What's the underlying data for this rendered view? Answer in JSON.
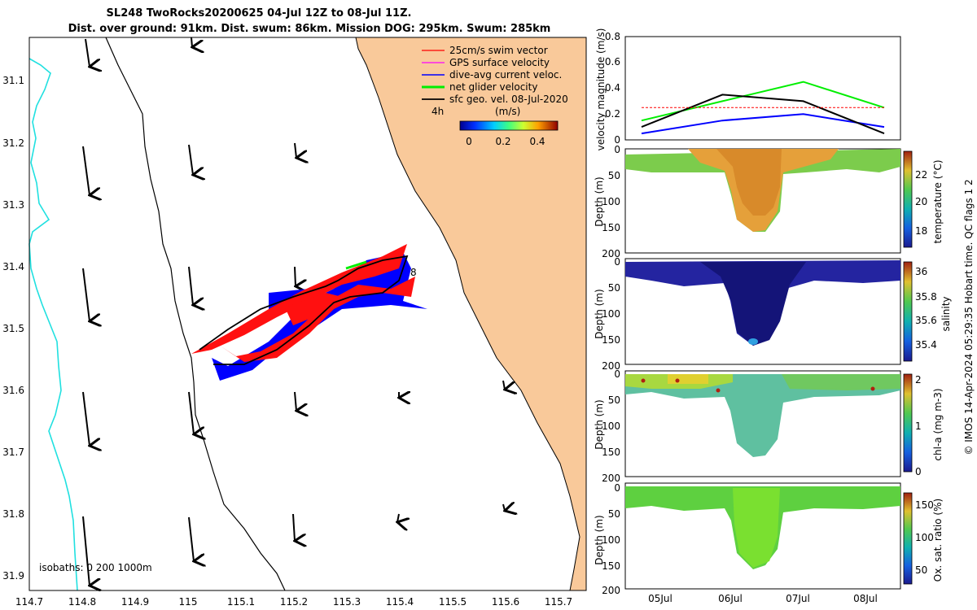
{
  "title": {
    "line1": "SL248 TwoRocks20200625 04-Jul 12Z to 08-Jul 11Z.",
    "line2": "Dist. over ground: 91km. Dist. swum: 86km. Mission DOG: 295km. Swum: 285km"
  },
  "map": {
    "x_ticks": [
      "114.7",
      "114.8",
      "114.9",
      "115",
      "115.1",
      "115.2",
      "115.3",
      "115.4",
      "115.5",
      "115.6",
      "115.7"
    ],
    "y_ticks": [
      "31.1",
      "31.2",
      "31.3",
      "31.4",
      "31.5",
      "31.6",
      "31.7",
      "31.8",
      "31.9"
    ],
    "legend": [
      {
        "label": "25cm/s swim vector",
        "color": "#ff0000"
      },
      {
        "label": "GPS surface velocity",
        "color": "#ff00ff"
      },
      {
        "label": "dive-avg current veloc.",
        "color": "#0000ff"
      },
      {
        "label": "net glider velocity",
        "color": "#00ee00"
      },
      {
        "label": "sfc geo. vel. 08-Jul-2020",
        "color": "#000000"
      }
    ],
    "scale_label": "4h",
    "colorbar_units": "(m/s)",
    "colorbar_ticks": [
      "0",
      "0.2",
      "0.4"
    ],
    "track_label": "8",
    "isobaths_label": "isobaths: 0   200  1000m",
    "land_color": "#f9c99a"
  },
  "velocity_panel": {
    "ylabel": "velocity magnitude (m/s)",
    "y_ticks": [
      "0",
      "0.2",
      "0.4",
      "0.6",
      "0.8"
    ]
  },
  "sections": [
    {
      "cb_label": "temperature (°C)",
      "cb_ticks": [
        "18",
        "20",
        "22"
      ],
      "ylabel": "Depth (m)",
      "y_ticks": [
        "0",
        "50",
        "100",
        "150",
        "200"
      ]
    },
    {
      "cb_label": "salinity",
      "cb_ticks": [
        "35.4",
        "35.6",
        "35.8",
        "36"
      ],
      "ylabel": "Depth (m)",
      "y_ticks": [
        "0",
        "50",
        "100",
        "150",
        "200"
      ]
    },
    {
      "cb_label": "chl-a (mg m-3)",
      "cb_ticks": [
        "0",
        "1",
        "2"
      ],
      "ylabel": "Depth (m)",
      "y_ticks": [
        "0",
        "50",
        "100",
        "150",
        "200"
      ]
    },
    {
      "cb_label": "Ox. sat. ratio (%)",
      "cb_ticks": [
        "50",
        "100",
        "150"
      ],
      "ylabel": "Depth (m)",
      "y_ticks": [
        "0",
        "50",
        "100",
        "150",
        "200"
      ]
    }
  ],
  "time_ticks": [
    "05Jul",
    "06Jul",
    "07Jul",
    "08Jul"
  ],
  "side_note": "© IMOS 14-Apr-2024 05:29:35 Hobart time. QC flags 1  2",
  "chart_data": {
    "type": "line",
    "title": "SL248 TwoRocks20200625 04-Jul 12Z to 08-Jul 11Z.",
    "ylabel": "velocity magnitude (m/s)",
    "ylim": [
      0,
      0.8
    ],
    "x": [
      "05Jul",
      "06Jul",
      "07Jul",
      "08Jul"
    ],
    "series": [
      {
        "color": "#00ee00",
        "values": [
          0.15,
          0.3,
          0.45,
          0.25
        ]
      },
      {
        "color": "#0000ff",
        "values": [
          0.05,
          0.15,
          0.2,
          0.1
        ]
      },
      {
        "color": "#000000",
        "values": [
          0.1,
          0.35,
          0.3,
          0.05
        ]
      },
      {
        "color": "#ff0000",
        "values": [
          0.25,
          0.25,
          0.25,
          0.25
        ]
      }
    ],
    "map_xlim": [
      114.7,
      115.75
    ],
    "map_ylim": [
      31.05,
      31.93
    ]
  }
}
